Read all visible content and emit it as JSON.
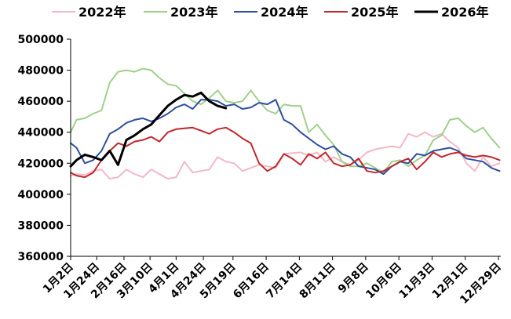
{
  "chart_data": {
    "type": "line",
    "title": "",
    "xlabel": "",
    "ylabel": "",
    "ylim": [
      360000,
      500000
    ],
    "yticks": [
      360000,
      380000,
      400000,
      420000,
      440000,
      460000,
      480000,
      500000
    ],
    "ytick_labels": [
      "360000",
      "380000",
      "400000",
      "420000",
      "440000",
      "460000",
      "480000",
      "500000"
    ],
    "x_range": [
      "1月2日",
      "12月31日"
    ],
    "xtick_labels": [
      "1月2日",
      "1月24日",
      "2月16日",
      "3月10日",
      "4月1日",
      "4月24日",
      "5月19日",
      "6月16日",
      "7月14日",
      "8月11日",
      "9月8日",
      "10月6日",
      "11月3日",
      "12月1日",
      "12月29日"
    ],
    "legend_position": "top",
    "grid": false,
    "series": [
      {
        "name": "2022年",
        "color": "#f2b8c6",
        "x": [
          "1月2日",
          "1月7日",
          "1月14日",
          "1月21日",
          "1月28日",
          "2月4日",
          "2月11日",
          "2月18日",
          "2月25日",
          "3月4日",
          "3月11日",
          "3月18日",
          "3月25日",
          "4月1日",
          "4月8日",
          "4月15日",
          "4月22日",
          "4月29日",
          "5月6日",
          "5月13日",
          "5月20日",
          "5月27日",
          "6月3日",
          "6月10日",
          "6月17日",
          "6月24日",
          "7月1日",
          "7月8日",
          "7月15日",
          "7月22日",
          "7月29日",
          "8月5日",
          "8月12日",
          "8月19日",
          "8月26日",
          "9月2日",
          "9月9日",
          "9月16日",
          "9月23日",
          "9月30日",
          "10月7日",
          "10月14日",
          "10月21日",
          "10月28日",
          "11月4日",
          "11月11日",
          "11月18日",
          "11月25日",
          "12月2日",
          "12月9日",
          "12月16日",
          "12月23日",
          "12月30日"
        ],
        "values": [
          412000,
          413000,
          412500,
          415000,
          416000,
          410000,
          411000,
          416000,
          413000,
          411000,
          416000,
          413000,
          410000,
          411000,
          421000,
          414000,
          415000,
          416000,
          424000,
          421000,
          420000,
          415000,
          417000,
          419000,
          418000,
          417000,
          426000,
          426500,
          427000,
          425000,
          427000,
          421000,
          424000,
          421000,
          419000,
          422000,
          427000,
          429000,
          430000,
          431000,
          430000,
          439000,
          437000,
          440000,
          437000,
          439000,
          434000,
          430000,
          420000,
          415000,
          424000,
          418000,
          420000
        ]
      },
      {
        "name": "2023年",
        "color": "#9fd08a",
        "x": [
          "1月2日",
          "1月7日",
          "1月14日",
          "1月21日",
          "1月28日",
          "2月4日",
          "2月11日",
          "2月18日",
          "2月25日",
          "3月4日",
          "3月11日",
          "3月18日",
          "3月25日",
          "4月1日",
          "4月8日",
          "4月15日",
          "4月22日",
          "4月29日",
          "5月6日",
          "5月13日",
          "5月20日",
          "5月27日",
          "6月3日",
          "6月10日",
          "6月17日",
          "6月24日",
          "7月1日",
          "7月8日",
          "7月15日",
          "7月22日",
          "7月29日",
          "8月5日",
          "8月12日",
          "8月19日",
          "8月26日",
          "9月2日",
          "9月9日",
          "9月16日",
          "9月23日",
          "9月30日",
          "10月7日",
          "10月14日",
          "10月21日",
          "10月28日",
          "11月4日",
          "11月11日",
          "11月18日",
          "11月25日",
          "12月2日",
          "12月9日",
          "12月16日",
          "12月23日",
          "12月30日"
        ],
        "values": [
          440000,
          448000,
          449000,
          452000,
          454000,
          472000,
          479000,
          480000,
          479000,
          481000,
          480000,
          475000,
          471000,
          470000,
          465000,
          460000,
          458000,
          462000,
          467000,
          460000,
          459000,
          460000,
          467000,
          460000,
          454000,
          452000,
          458000,
          457000,
          457000,
          440000,
          445000,
          438000,
          432000,
          421000,
          418000,
          418000,
          420000,
          417000,
          414000,
          421000,
          422000,
          418000,
          422000,
          425000,
          435000,
          438000,
          448000,
          449000,
          444000,
          440000,
          443000,
          436000,
          430000
        ]
      },
      {
        "name": "2024年",
        "color": "#2e4f9b",
        "x": [
          "1月2日",
          "1月7日",
          "1月14日",
          "1月21日",
          "1月28日",
          "2月4日",
          "2月11日",
          "2月18日",
          "2月25日",
          "3月4日",
          "3月11日",
          "3月18日",
          "3月25日",
          "4月1日",
          "4月8日",
          "4月15日",
          "4月22日",
          "4月29日",
          "5月6日",
          "5月13日",
          "5月20日",
          "5月27日",
          "6月3日",
          "6月10日",
          "6月17日",
          "6月24日",
          "7月1日",
          "7月8日",
          "7月15日",
          "7月22日",
          "7月29日",
          "8月5日",
          "8月12日",
          "8月19日",
          "8月26日",
          "9月2日",
          "9月9日",
          "9月16日",
          "9月23日",
          "9月30日",
          "10月7日",
          "10月14日",
          "10月21日",
          "10月28日",
          "11月4日",
          "11月11日",
          "11月18日",
          "11月25日",
          "12月2日",
          "12月9日",
          "12月16日",
          "12月23日",
          "12月30日"
        ],
        "values": [
          433000,
          430000,
          420000,
          422000,
          428000,
          439000,
          442000,
          446000,
          448000,
          449000,
          447000,
          449000,
          452000,
          456000,
          458000,
          455000,
          461000,
          461000,
          460000,
          457000,
          458000,
          455000,
          456000,
          459000,
          458000,
          461000,
          448000,
          445000,
          440000,
          436000,
          432000,
          429000,
          431000,
          426000,
          424000,
          418000,
          417000,
          416000,
          413000,
          418000,
          421000,
          420000,
          426000,
          425000,
          428000,
          429000,
          430000,
          428000,
          423000,
          422000,
          421000,
          417000,
          415000
        ]
      },
      {
        "name": "2025年",
        "color": "#c0282c",
        "x": [
          "1月2日",
          "1月7日",
          "1月14日",
          "1月21日",
          "1月28日",
          "2月4日",
          "2月11日",
          "2月18日",
          "2月25日",
          "3月4日",
          "3月11日",
          "3月18日",
          "3月25日",
          "4月1日",
          "4月8日",
          "4月15日",
          "4月22日",
          "4月29日",
          "5月6日",
          "5月13日",
          "5月20日",
          "5月27日",
          "6月3日",
          "6月10日",
          "6月17日",
          "6月24日",
          "7月1日",
          "7月8日",
          "7月15日",
          "7月22日",
          "7月29日",
          "8月5日",
          "8月12日",
          "8月19日",
          "8月26日",
          "9月2日",
          "9月9日",
          "9月16日",
          "9月23日",
          "9月30日",
          "10月7日",
          "10月14日",
          "10月21日",
          "10月28日",
          "11月4日",
          "11月11日",
          "11月18日",
          "11月25日",
          "12月2日",
          "12月9日",
          "12月16日",
          "12月23日",
          "12月30日"
        ],
        "values": [
          414000,
          412000,
          411000,
          414000,
          422000,
          428000,
          433000,
          431000,
          434000,
          435000,
          437000,
          434000,
          440000,
          442000,
          442500,
          443000,
          441000,
          439000,
          442000,
          443000,
          440000,
          436000,
          433000,
          420000,
          415000,
          418000,
          426000,
          423000,
          419000,
          426000,
          423000,
          427000,
          420000,
          418000,
          419000,
          423000,
          415000,
          414000,
          415000,
          418000,
          421000,
          423000,
          416000,
          421000,
          427000,
          424000,
          426000,
          427000,
          425000,
          424000,
          425000,
          424000,
          422000
        ]
      },
      {
        "name": "2026年",
        "color": "#000000",
        "x": [
          "1月2日",
          "1月7日",
          "1月14日",
          "1月21日",
          "1月28日",
          "2月4日",
          "2月11日",
          "2月18日",
          "2月25日",
          "3月4日",
          "3月11日",
          "3月18日",
          "3月25日",
          "4月1日",
          "4月8日",
          "4月15日",
          "4月22日",
          "4月29日",
          "5月6日",
          "5月13日"
        ],
        "values": [
          418000,
          422000,
          425500,
          424000,
          422000,
          428000,
          419000,
          435000,
          438000,
          442000,
          445000,
          451000,
          457000,
          461000,
          464000,
          463000,
          465500,
          460000,
          457000,
          455500
        ]
      }
    ]
  }
}
